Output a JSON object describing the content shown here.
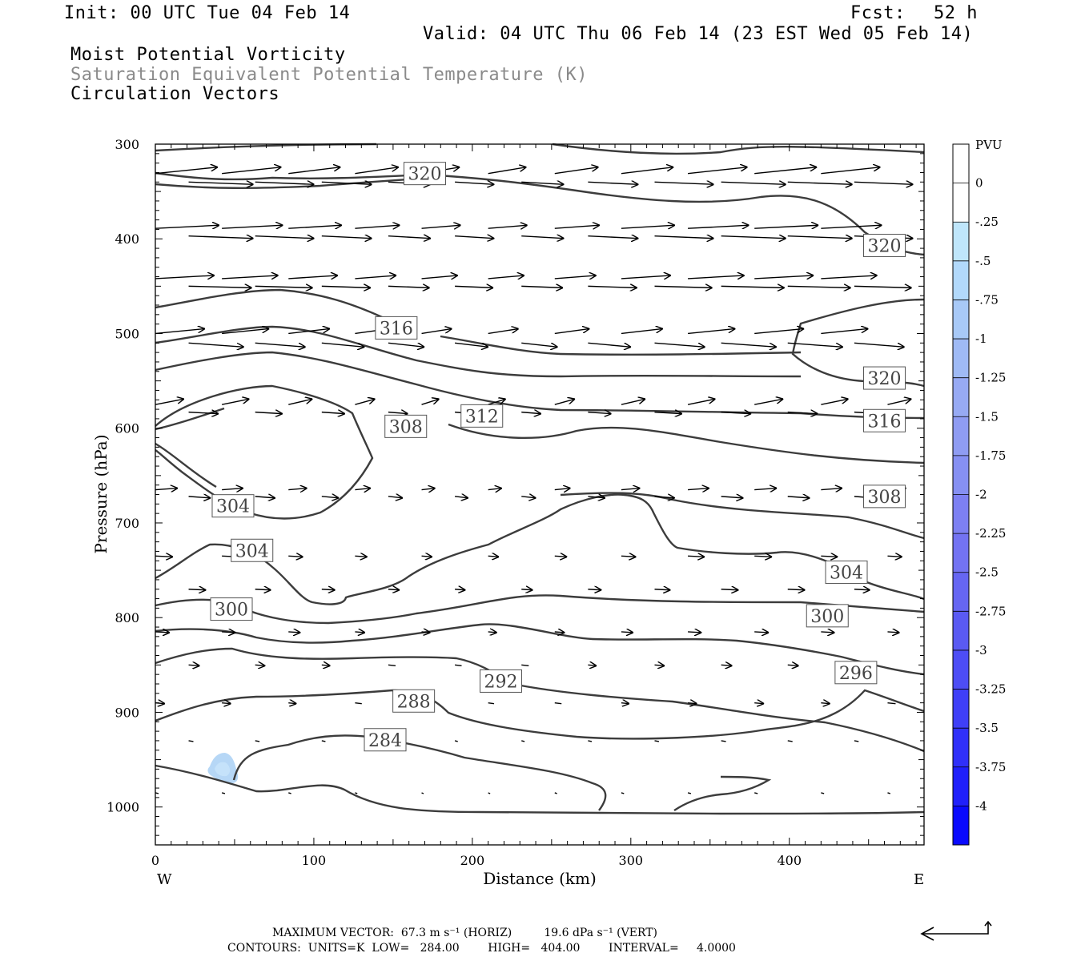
{
  "header": {
    "init": "Init: 00 UTC Tue 04 Feb 14",
    "fcst_label": "Fcst:",
    "fcst_value": "52 h",
    "valid": "Valid: 04 UTC Thu 06 Feb 14 (23 EST Wed 05 Feb 14)",
    "field1": "Moist Potential Vorticity",
    "field2": "Saturation Equivalent Potential Temperature (K)",
    "field3": "Circulation Vectors"
  },
  "chart_data": {
    "type": "cross-section",
    "xlabel": "Distance (km)",
    "ylabel": "Pressure (hPa)",
    "xlim": [
      0,
      485
    ],
    "ylim": [
      1040,
      300
    ],
    "x_ticks": [
      "0",
      "100",
      "200",
      "300",
      "400"
    ],
    "y_ticks": [
      "300",
      "400",
      "500",
      "600",
      "700",
      "800",
      "900",
      "1000"
    ],
    "x_end_labels": [
      "W",
      "E"
    ],
    "colorbar": {
      "unit": "PVU",
      "labels": [
        "0",
        "-.25",
        "-.5",
        "-.75",
        "-1",
        "-1.25",
        "-1.5",
        "-1.75",
        "-2",
        "-2.25",
        "-2.5",
        "-2.75",
        "-3",
        "-3.25",
        "-3.5",
        "-3.75",
        "-4"
      ],
      "colors": [
        "#ffffff",
        "#ffffff",
        "#bfe6fb",
        "#b2d9fb",
        "#a8c9f7",
        "#9fbaf5",
        "#97aaf4",
        "#8f9cf3",
        "#8690f3",
        "#7d80f2",
        "#7373f2",
        "#6666f2",
        "#5a5af3",
        "#4d4df5",
        "#3f3ff7",
        "#3030f9",
        "#2020fb",
        "#0a0afd"
      ]
    },
    "contour_labels": [
      {
        "text": "320",
        "x": 170,
        "p": 331
      },
      {
        "text": "320",
        "x": 460,
        "p": 407
      },
      {
        "text": "316",
        "x": 152,
        "p": 494
      },
      {
        "text": "320",
        "x": 460,
        "p": 547
      },
      {
        "text": "312",
        "x": 206,
        "p": 587
      },
      {
        "text": "308",
        "x": 158,
        "p": 598
      },
      {
        "text": "316",
        "x": 460,
        "p": 592
      },
      {
        "text": "304",
        "x": 49,
        "p": 682
      },
      {
        "text": "308",
        "x": 460,
        "p": 672
      },
      {
        "text": "304",
        "x": 61,
        "p": 729
      },
      {
        "text": "304",
        "x": 436,
        "p": 752
      },
      {
        "text": "300",
        "x": 48,
        "p": 791
      },
      {
        "text": "300",
        "x": 424,
        "p": 798
      },
      {
        "text": "296",
        "x": 442,
        "p": 858
      },
      {
        "text": "292",
        "x": 218,
        "p": 867
      },
      {
        "text": "288",
        "x": 163,
        "p": 888
      },
      {
        "text": "284",
        "x": 145,
        "p": 929
      }
    ],
    "footer_line1": "MAXIMUM VECTOR:  67.3 m s⁻¹ (HORIZ)         19.6 dPa s⁻¹ (VERT)",
    "footer_line2": "CONTOURS:  UNITS=K  LOW=   284.00        HIGH=   404.00        INTERVAL=     4.0000"
  }
}
